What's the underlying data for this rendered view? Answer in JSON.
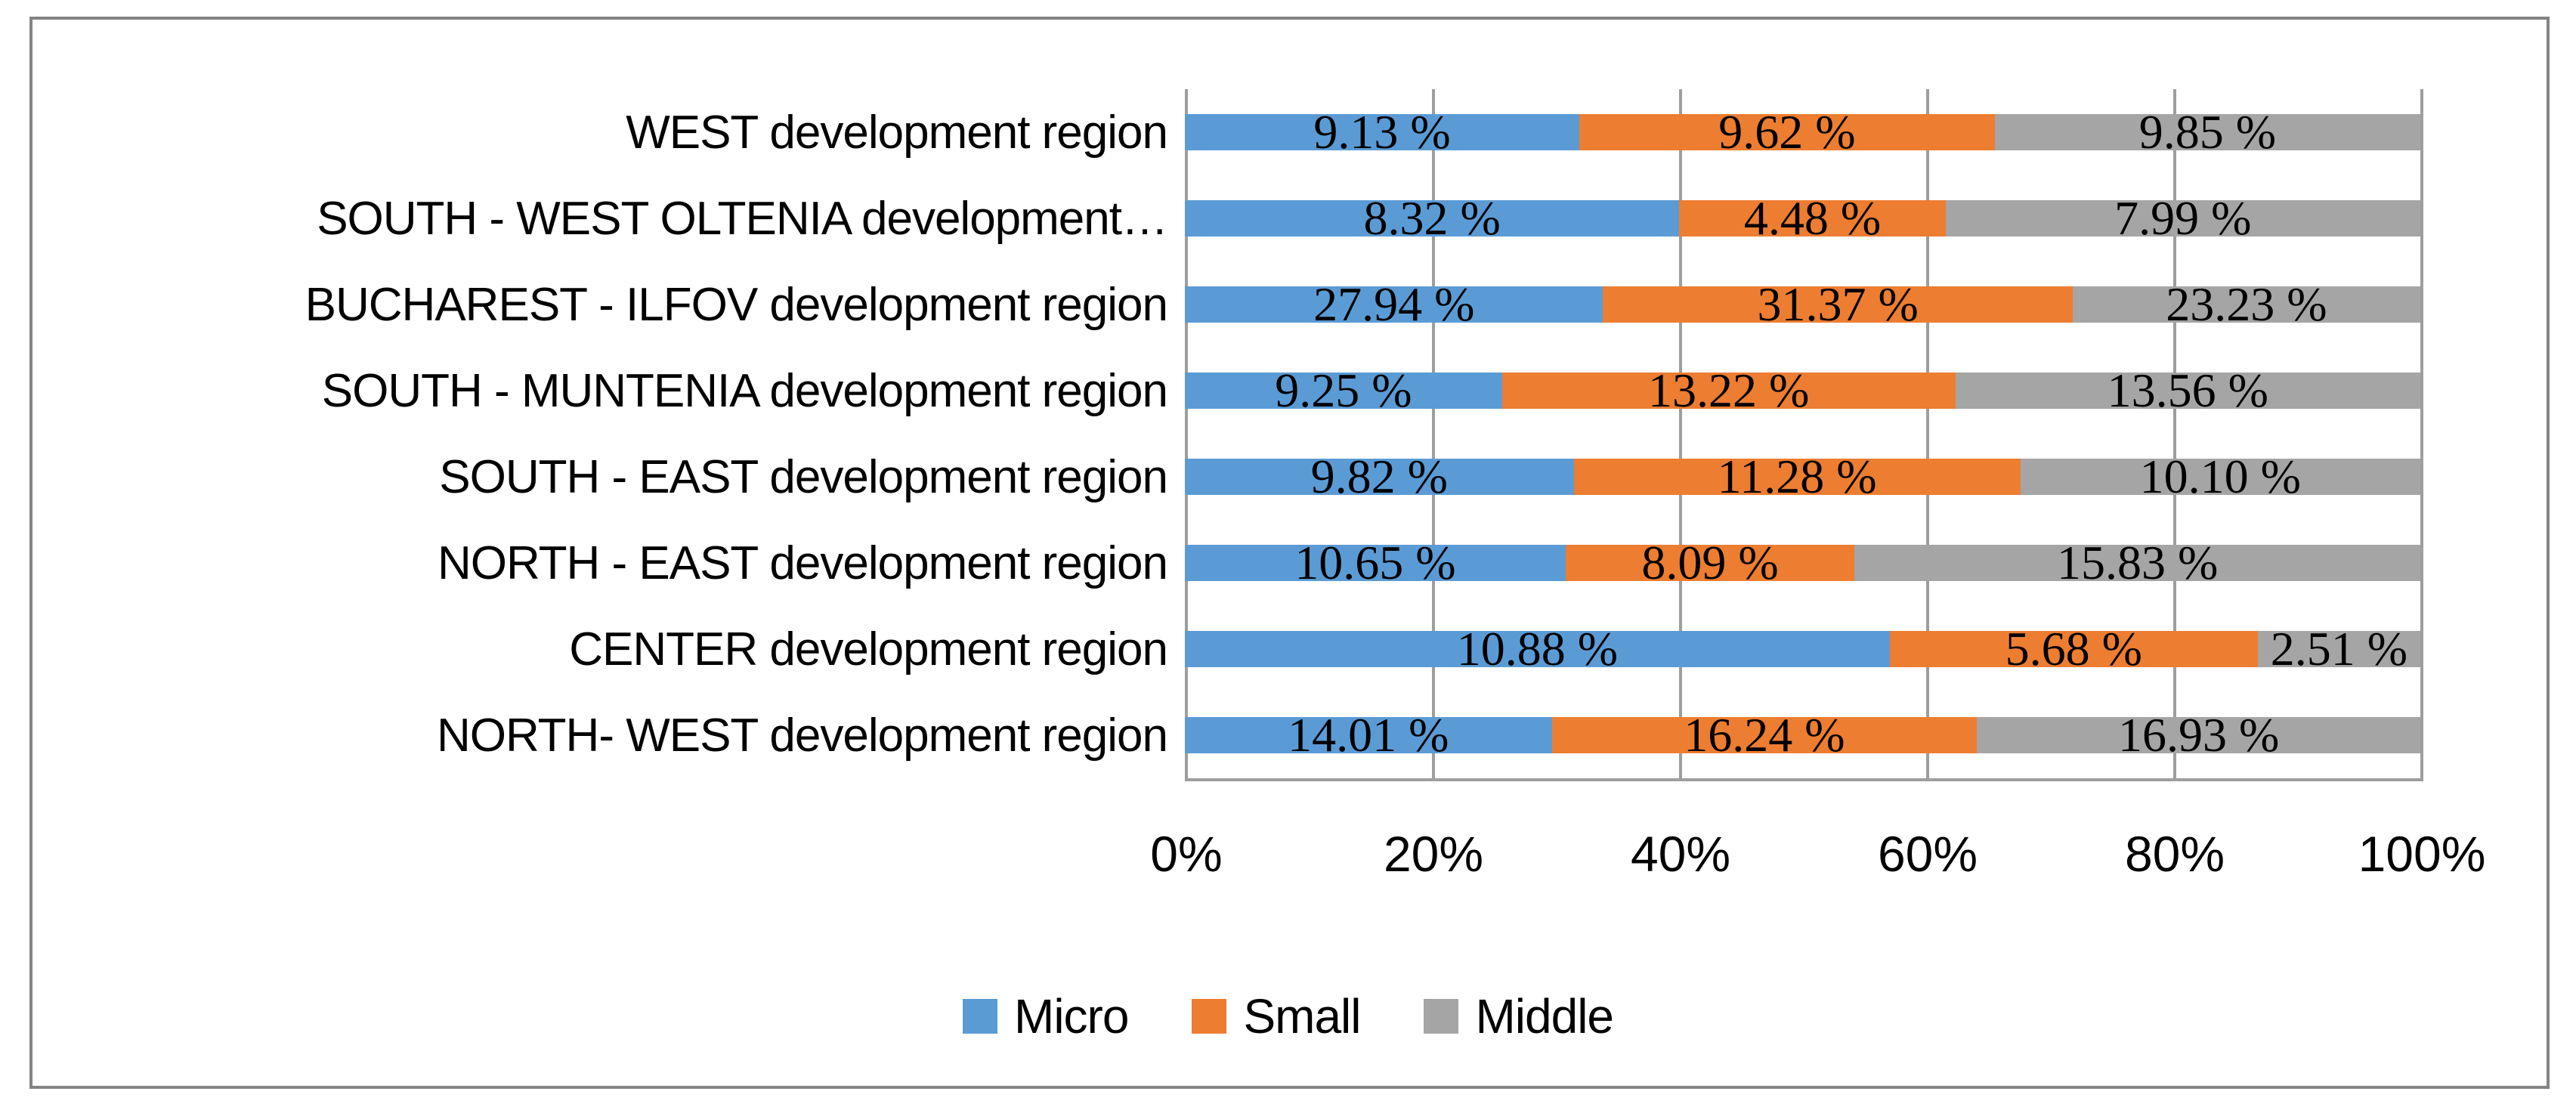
{
  "chart_data": {
    "type": "bar",
    "orientation": "horizontal",
    "stacking": "100%",
    "title": "",
    "xlabel": "",
    "ylabel": "",
    "grid": "vertical-on",
    "legend_position": "bottom",
    "categories": [
      "WEST development region",
      "SOUTH - WEST OLTENIA development…",
      "BUCHAREST - ILFOV development region",
      "SOUTH - MUNTENIA development region",
      "SOUTH - EAST development region",
      "NORTH - EAST development region",
      "CENTER development region",
      "NORTH- WEST development region"
    ],
    "series": [
      {
        "name": "Micro",
        "color": "#5B9BD5",
        "values": [
          9.13,
          8.32,
          27.94,
          9.25,
          9.82,
          10.65,
          10.88,
          14.01
        ],
        "labels": [
          "9.13 %",
          "8.32 %",
          "27.94 %",
          "9.25 %",
          "9.82 %",
          "10.65 %",
          "10.88 %",
          "14.01 %"
        ]
      },
      {
        "name": "Small",
        "color": "#ED7D31",
        "values": [
          9.62,
          4.48,
          31.37,
          13.22,
          11.28,
          8.09,
          5.68,
          16.24
        ],
        "labels": [
          "9.62 %",
          "4.48 %",
          "31.37 %",
          "13.22 %",
          "11.28 %",
          "8.09 %",
          "5.68 %",
          "16.24 %"
        ]
      },
      {
        "name": "Middle",
        "color": "#A5A5A5",
        "values": [
          9.85,
          7.99,
          23.23,
          13.56,
          10.1,
          15.83,
          2.51,
          16.93
        ],
        "labels": [
          "9.85 %",
          "7.99 %",
          "23.23 %",
          "13.56 %",
          "10.10 %",
          "15.83 %",
          "2.51 %",
          "16.93 %"
        ]
      }
    ],
    "x_axis": {
      "ticks": [
        "0%",
        "20%",
        "40%",
        "60%",
        "80%",
        "100%"
      ],
      "range": [
        0,
        100
      ]
    },
    "colors": {
      "gridline": "#9E9E9E",
      "frame_border": "#848484",
      "background": "#FFFFFF",
      "text": "#000000"
    }
  }
}
